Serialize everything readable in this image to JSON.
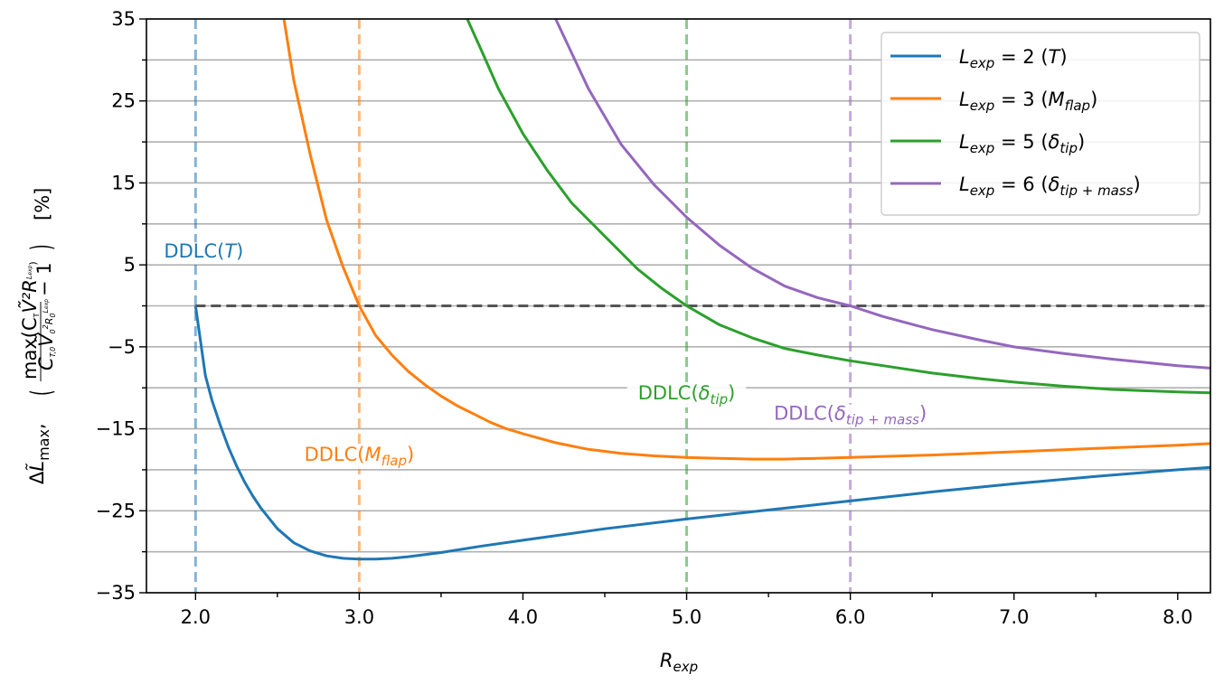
{
  "chart_data": {
    "type": "line",
    "title": "",
    "xlabel": "R_exp",
    "ylabel": "ΔL̃max, ( max(C_T Ṽ² R^Lexp) / (C_T,0 Ṽ0² R0^Lexp) − 1 )  [%]",
    "xlim": [
      1.7,
      8.2
    ],
    "ylim": [
      -35,
      35
    ],
    "xticks": [
      2.0,
      3.0,
      4.0,
      5.0,
      6.0,
      7.0,
      8.0
    ],
    "xtick_labels": [
      "2.0",
      "3.0",
      "4.0",
      "5.0",
      "6.0",
      "7.0",
      "8.0"
    ],
    "yticks": [
      -35,
      -25,
      -15,
      -5,
      5,
      15,
      25,
      35
    ],
    "ytick_labels": [
      "−35",
      "−25",
      "−15",
      "−5",
      "5",
      "15",
      "25",
      "35"
    ],
    "grid": "horizontal",
    "reference_line": {
      "y": 0,
      "style": "dashed",
      "color": "#555555"
    },
    "legend_position": "top-right",
    "series": [
      {
        "name": "L_exp = 2 (T)",
        "legend_label": {
          "lhs": "L",
          "sub": "exp",
          "rhs": " = 2 (",
          "sym": "T",
          "sub2": "",
          "close": ")"
        },
        "color": "#1f77b4",
        "exponent": 2,
        "ddlc_x": 2.0,
        "x": [
          2.0,
          2.06,
          2.1,
          2.15,
          2.2,
          2.25,
          2.3,
          2.35,
          2.4,
          2.5,
          2.6,
          2.7,
          2.8,
          2.9,
          3.0,
          3.1,
          3.2,
          3.3,
          3.5,
          3.75,
          4.0,
          4.5,
          5.0,
          5.5,
          6.0,
          6.5,
          7.0,
          7.5,
          8.0,
          8.2
        ],
        "y": [
          0,
          -8.5,
          -11.5,
          -14.5,
          -17.2,
          -19.5,
          -21.5,
          -23.2,
          -24.7,
          -27.2,
          -28.9,
          -29.9,
          -30.5,
          -30.8,
          -30.9,
          -30.9,
          -30.8,
          -30.6,
          -30.1,
          -29.3,
          -28.6,
          -27.2,
          -26.0,
          -24.9,
          -23.8,
          -22.7,
          -21.7,
          -20.8,
          -20.0,
          -19.7
        ]
      },
      {
        "name": "L_exp = 3 (M_flap)",
        "legend_label": {
          "lhs": "L",
          "sub": "exp",
          "rhs": " = 3 (",
          "sym": "M",
          "sub2": "flap",
          "close": ")"
        },
        "color": "#ff7f0e",
        "exponent": 3,
        "ddlc_x": 3.0,
        "x": [
          2.54,
          2.6,
          2.7,
          2.8,
          2.9,
          3.0,
          3.1,
          3.2,
          3.3,
          3.4,
          3.5,
          3.6,
          3.7,
          3.8,
          3.9,
          4.0,
          4.2,
          4.4,
          4.6,
          4.8,
          5.0,
          5.2,
          5.4,
          5.6,
          5.8,
          6.0,
          6.5,
          7.0,
          7.5,
          8.0,
          8.2
        ],
        "y": [
          35,
          27.5,
          18.5,
          10.5,
          4.8,
          0,
          -3.6,
          -6.0,
          -8.0,
          -9.6,
          -11.0,
          -12.2,
          -13.2,
          -14.2,
          -15.0,
          -15.6,
          -16.7,
          -17.5,
          -18.0,
          -18.3,
          -18.5,
          -18.6,
          -18.7,
          -18.7,
          -18.6,
          -18.5,
          -18.2,
          -17.8,
          -17.4,
          -17.0,
          -16.8
        ]
      },
      {
        "name": "L_exp = 5 (δ_tip)",
        "legend_label": {
          "lhs": "L",
          "sub": "exp",
          "rhs": " = 5 (",
          "sym": "δ",
          "sub2": "tip",
          "close": ")"
        },
        "color": "#2ca02c",
        "exponent": 5,
        "ddlc_x": 5.0,
        "x": [
          3.66,
          3.75,
          3.85,
          4.0,
          4.15,
          4.3,
          4.5,
          4.7,
          4.85,
          5.0,
          5.2,
          5.4,
          5.6,
          5.8,
          6.0,
          6.2,
          6.5,
          6.8,
          7.0,
          7.3,
          7.6,
          8.0,
          8.2
        ],
        "y": [
          35,
          31,
          26.5,
          21,
          16.5,
          12.5,
          8.5,
          4.5,
          2.1,
          0,
          -2.3,
          -3.9,
          -5.2,
          -6.0,
          -6.7,
          -7.3,
          -8.2,
          -8.9,
          -9.3,
          -9.8,
          -10.2,
          -10.5,
          -10.6
        ]
      },
      {
        "name": "L_exp = 6 (δ_tip+mass)",
        "legend_label": {
          "lhs": "L",
          "sub": "exp",
          "rhs": " = 6 (",
          "sym": "δ",
          "sub2": "tip + mass",
          "close": ")"
        },
        "color": "#9467bd",
        "exponent": 6,
        "ddlc_x": 6.0,
        "x": [
          4.2,
          4.4,
          4.6,
          4.8,
          5.0,
          5.2,
          5.4,
          5.6,
          5.8,
          6.0,
          6.2,
          6.5,
          6.8,
          7.0,
          7.3,
          7.6,
          8.0,
          8.2
        ],
        "y": [
          35,
          26.5,
          19.7,
          14.8,
          10.8,
          7.4,
          4.6,
          2.4,
          1.0,
          0,
          -1.3,
          -2.9,
          -4.2,
          -5.0,
          -5.8,
          -6.5,
          -7.3,
          -7.6
        ]
      }
    ],
    "annotations": [
      {
        "text": "DDLC(",
        "sym": "T",
        "sub": "",
        "close": ")",
        "x": 2.05,
        "y": 5.9,
        "color": "#1f77b4"
      },
      {
        "text": "DDLC(",
        "sym": "M",
        "sub": "flap",
        "close": ")",
        "x": 3.0,
        "y": -18.9,
        "color": "#ff7f0e"
      },
      {
        "text": "DDLC(",
        "sym": "δ",
        "sub": "tip",
        "close": ")",
        "x": 5.0,
        "y": -11.4,
        "color": "#2ca02c"
      },
      {
        "text": "DDLC(",
        "sym": "δ",
        "sub": "tip + mass",
        "close": ")",
        "x": 6.0,
        "y": -13.9,
        "color": "#9467bd"
      }
    ],
    "axis_title_x": {
      "base": "R",
      "sub": "exp"
    },
    "axis_title_y": {
      "prefix": "Δ",
      "sym": "L̃",
      "sub": "max",
      "comma": ",",
      "open": "(",
      "close": ")",
      "numerator": {
        "func": "max(C",
        "sub": "T",
        "mid": "Ṽ²R",
        "sup": "L",
        "supsub": "exp",
        "end": ")"
      },
      "denominator": {
        "base": "C",
        "sub": "T,0",
        "mid": "Ṽ",
        "sub2": "0",
        "sup": "2",
        "r": "R",
        "rsub": "0",
        "rsup": "L",
        "rsupsub": "exp"
      },
      "minus_one": "− 1",
      "unit": "[%]"
    }
  }
}
